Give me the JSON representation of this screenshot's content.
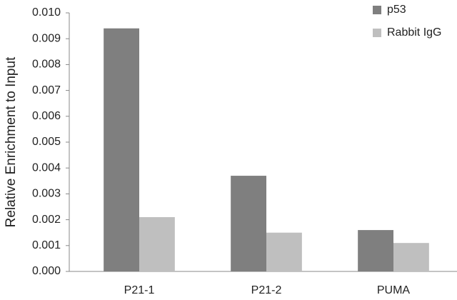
{
  "chart_data": {
    "type": "bar",
    "y_label": "Relative Enrichment to Input",
    "categories": [
      "P21-1",
      "P21-2",
      "PUMA"
    ],
    "series": [
      {
        "name": "p53",
        "color": "#7f7f7f",
        "values": [
          0.0094,
          0.0037,
          0.0016
        ]
      },
      {
        "name": "Rabbit IgG",
        "color": "#bfbfbf",
        "values": [
          0.0021,
          0.0015,
          0.0011
        ]
      }
    ],
    "ylim": [
      0,
      0.01
    ],
    "yticks": [
      {
        "value": 0,
        "label": "0.000"
      },
      0.001,
      0.002,
      0.003,
      0.004,
      0.005,
      0.006,
      0.007,
      0.008,
      0.009,
      {
        "value": 0.01,
        "label": "0.010"
      }
    ],
    "legend": "top-right"
  }
}
